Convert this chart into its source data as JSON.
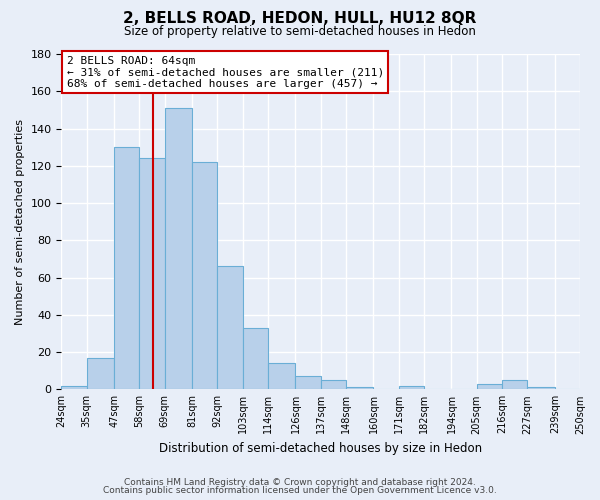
{
  "title": "2, BELLS ROAD, HEDON, HULL, HU12 8QR",
  "subtitle": "Size of property relative to semi-detached houses in Hedon",
  "xlabel": "Distribution of semi-detached houses by size in Hedon",
  "ylabel": "Number of semi-detached properties",
  "bin_labels": [
    "24sqm",
    "35sqm",
    "47sqm",
    "58sqm",
    "69sqm",
    "81sqm",
    "92sqm",
    "103sqm",
    "114sqm",
    "126sqm",
    "137sqm",
    "148sqm",
    "160sqm",
    "171sqm",
    "182sqm",
    "194sqm",
    "205sqm",
    "216sqm",
    "227sqm",
    "239sqm",
    "250sqm"
  ],
  "bar_values": [
    2,
    17,
    130,
    124,
    151,
    122,
    66,
    33,
    14,
    7,
    5,
    1,
    0,
    2,
    0,
    0,
    3,
    5,
    1,
    0
  ],
  "bar_color": "#b8d0ea",
  "bar_edge_color": "#6aaed6",
  "property_line_x": 64,
  "bin_edges": [
    24,
    35,
    47,
    58,
    69,
    81,
    92,
    103,
    114,
    126,
    137,
    148,
    160,
    171,
    182,
    194,
    205,
    216,
    227,
    239,
    250
  ],
  "annotation_title": "2 BELLS ROAD: 64sqm",
  "annotation_line1": "← 31% of semi-detached houses are smaller (211)",
  "annotation_line2": "68% of semi-detached houses are larger (457) →",
  "annotation_box_color": "#ffffff",
  "annotation_box_edge": "#cc0000",
  "vline_color": "#cc0000",
  "ylim": [
    0,
    180
  ],
  "yticks": [
    0,
    20,
    40,
    60,
    80,
    100,
    120,
    140,
    160,
    180
  ],
  "footer1": "Contains HM Land Registry data © Crown copyright and database right 2024.",
  "footer2": "Contains public sector information licensed under the Open Government Licence v3.0.",
  "background_color": "#e8eef8",
  "plot_background": "#e8eef8",
  "grid_color": "#ffffff"
}
